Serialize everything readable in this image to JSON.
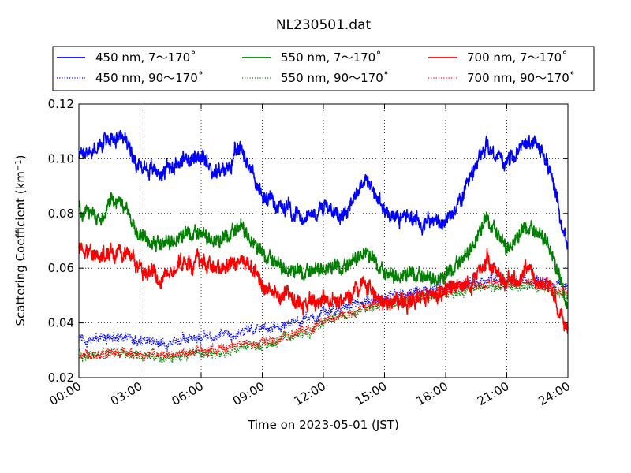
{
  "chart_data": {
    "type": "line",
    "title": "NL230501.dat",
    "xlabel": "Time on 2023-05-01 (JST)",
    "ylabel_main": "Scattering Coefficient (km",
    "ylabel_sup": "−1",
    "ylabel_end": ")",
    "xlim": [
      "00:00",
      "24:00"
    ],
    "ylim": [
      0.02,
      0.12
    ],
    "grid": true,
    "legend_position": "top, above plot",
    "x_ticks": [
      "00:00",
      "03:00",
      "06:00",
      "09:00",
      "12:00",
      "15:00",
      "18:00",
      "21:00",
      "24:00"
    ],
    "y_ticks": [
      "0.02",
      "0.04",
      "0.06",
      "0.08",
      "0.10",
      "0.12"
    ],
    "x_hours": [
      0,
      1,
      2,
      3,
      4,
      5,
      6,
      7,
      8,
      9,
      10,
      11,
      12,
      13,
      14,
      15,
      16,
      17,
      18,
      19,
      20,
      21,
      22,
      23,
      24
    ],
    "series": [
      {
        "name": "450 nm, 7～170˚",
        "color": "#0000ff",
        "style": "solid",
        "values": [
          0.102,
          0.104,
          0.11,
          0.098,
          0.095,
          0.1,
          0.099,
          0.094,
          0.104,
          0.086,
          0.083,
          0.079,
          0.082,
          0.08,
          0.093,
          0.081,
          0.079,
          0.077,
          0.076,
          0.088,
          0.105,
          0.098,
          0.107,
          0.1,
          0.066
        ]
      },
      {
        "name": "450 nm, 90～170˚",
        "color": "#0000ff",
        "style": "dotted",
        "values": [
          0.034,
          0.034,
          0.035,
          0.033,
          0.033,
          0.034,
          0.035,
          0.035,
          0.037,
          0.038,
          0.039,
          0.041,
          0.044,
          0.046,
          0.048,
          0.049,
          0.051,
          0.052,
          0.053,
          0.054,
          0.055,
          0.055,
          0.055,
          0.055,
          0.053
        ]
      },
      {
        "name": "550 nm, 7～170˚",
        "color": "#008000",
        "style": "solid",
        "values": [
          0.08,
          0.078,
          0.086,
          0.072,
          0.068,
          0.071,
          0.072,
          0.069,
          0.075,
          0.064,
          0.06,
          0.057,
          0.06,
          0.059,
          0.066,
          0.057,
          0.057,
          0.056,
          0.056,
          0.064,
          0.077,
          0.067,
          0.074,
          0.07,
          0.045
        ]
      },
      {
        "name": "550 nm, 90～170˚",
        "color": "#008000",
        "style": "dotted",
        "values": [
          0.028,
          0.028,
          0.029,
          0.028,
          0.027,
          0.028,
          0.029,
          0.029,
          0.031,
          0.032,
          0.034,
          0.036,
          0.04,
          0.043,
          0.046,
          0.047,
          0.049,
          0.05,
          0.051,
          0.052,
          0.053,
          0.053,
          0.053,
          0.052,
          0.05
        ]
      },
      {
        "name": "700 nm, 7～170˚",
        "color": "#ff0000",
        "style": "solid",
        "values": [
          0.067,
          0.064,
          0.068,
          0.06,
          0.057,
          0.061,
          0.062,
          0.06,
          0.064,
          0.053,
          0.05,
          0.047,
          0.049,
          0.049,
          0.053,
          0.047,
          0.048,
          0.049,
          0.051,
          0.055,
          0.063,
          0.055,
          0.058,
          0.055,
          0.036
        ]
      },
      {
        "name": "700 nm, 90～170˚",
        "color": "#ff0000",
        "style": "dotted",
        "values": [
          0.028,
          0.028,
          0.03,
          0.028,
          0.028,
          0.029,
          0.03,
          0.03,
          0.032,
          0.033,
          0.035,
          0.037,
          0.041,
          0.043,
          0.046,
          0.047,
          0.049,
          0.051,
          0.052,
          0.053,
          0.054,
          0.055,
          0.055,
          0.054,
          0.051
        ]
      }
    ]
  }
}
